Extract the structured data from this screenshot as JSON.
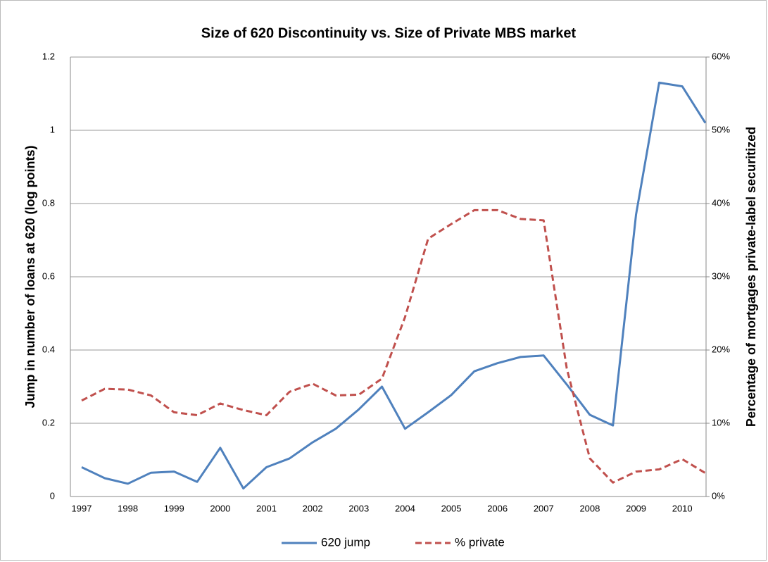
{
  "chart_data": {
    "type": "line",
    "title": "Size of 620 Discontinuity vs. Size of Private MBS market",
    "y_label": "Jump in number of loans at 620 (log points)",
    "y2_label": "Percentage of mortgages private-label securitized",
    "categories": [
      "1997",
      null,
      "1998",
      null,
      "1999",
      null,
      "2000",
      null,
      "2001",
      null,
      "2002",
      null,
      "2003",
      null,
      "2004",
      null,
      "2005",
      null,
      "2006",
      null,
      "2007",
      null,
      "2008",
      null,
      "2009",
      null,
      "2010",
      null
    ],
    "series": [
      {
        "name": "620 jump",
        "color": "#4f81bd",
        "values": [
          0.08,
          0.05,
          0.035,
          0.065,
          0.068,
          0.04,
          0.133,
          0.022,
          0.08,
          0.104,
          0.148,
          0.185,
          0.238,
          0.3,
          0.185,
          0.23,
          0.277,
          0.342,
          0.364,
          0.381,
          0.385,
          0.306,
          0.223,
          0.194,
          0.77,
          1.13,
          1.12,
          1.02
        ]
      },
      {
        "name": "% private",
        "color": "#c0504d",
        "axis": "y2",
        "dashed": true,
        "values": [
          13.1,
          14.7,
          14.6,
          13.8,
          11.5,
          11.1,
          12.7,
          11.8,
          11.1,
          14.3,
          15.4,
          13.8,
          13.9,
          16.1,
          24.5,
          35.2,
          37.2,
          39.1,
          39.1,
          37.9,
          37.7,
          17.5,
          5.2,
          1.9,
          3.4,
          3.7,
          5.1,
          3.2
        ]
      }
    ],
    "ylim": [
      0,
      1.2
    ],
    "yticks": [
      0,
      0.2,
      0.4,
      0.6,
      0.8,
      1,
      1.2
    ],
    "y2lim": [
      0,
      60
    ],
    "y2ticks": [
      {
        "value": 0,
        "label": "0%"
      },
      {
        "value": 10,
        "label": "10%"
      },
      {
        "value": 20,
        "label": "20%"
      },
      {
        "value": 30,
        "label": "30%"
      },
      {
        "value": 40,
        "label": "40%"
      },
      {
        "value": 50,
        "label": "50%"
      },
      {
        "value": 60,
        "label": "60%"
      }
    ],
    "grid": true,
    "legend": "bottom"
  }
}
